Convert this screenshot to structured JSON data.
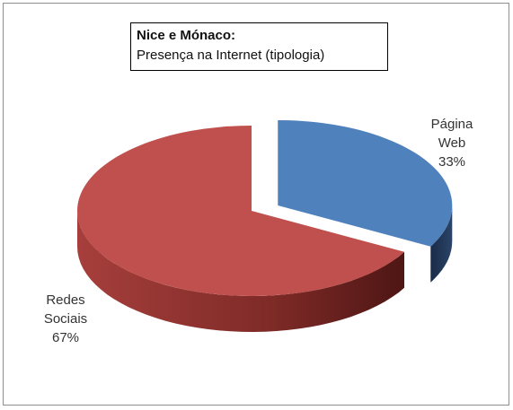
{
  "chart_data": {
    "type": "pie",
    "title": "Nice e Mónaco:",
    "subtitle": "Presença na Internet (tipologia)",
    "categories": [
      "Página Web",
      "Redes Sociais"
    ],
    "values": [
      33,
      67
    ],
    "value_labels": [
      "33%",
      "67%"
    ],
    "colors": [
      "#4f81bd",
      "#c0504d"
    ],
    "side_colors": [
      "#23395a",
      "#7a2624"
    ],
    "exploded": [
      0
    ]
  }
}
